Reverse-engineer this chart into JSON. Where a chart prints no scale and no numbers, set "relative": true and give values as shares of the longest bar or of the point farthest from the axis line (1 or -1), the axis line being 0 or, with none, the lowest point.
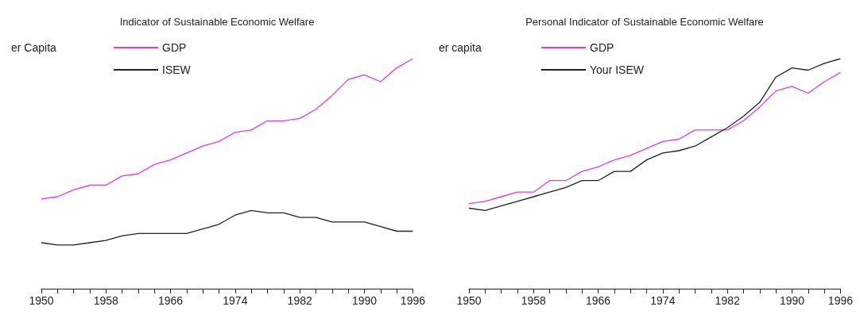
{
  "chart_data": [
    {
      "type": "line",
      "title": "Indicator of Sustainable Economic Welfare",
      "ylabel": "er Capita",
      "relative": true,
      "legend": "top left",
      "grid": false,
      "x": [
        1950,
        1952,
        1954,
        1956,
        1958,
        1960,
        1962,
        1964,
        1966,
        1968,
        1970,
        1972,
        1974,
        1976,
        1978,
        1980,
        1982,
        1984,
        1986,
        1988,
        1990,
        1992,
        1994,
        1996
      ],
      "xlim": [
        1950,
        1996
      ],
      "xticks": [
        1950,
        {
          "value": 1952,
          "label": null
        },
        {
          "value": 1954,
          "label": null
        },
        {
          "value": 1956,
          "label": null
        },
        1958,
        {
          "value": 1960,
          "label": null
        },
        {
          "value": 1962,
          "label": null
        },
        {
          "value": 1964,
          "label": null
        },
        1966,
        {
          "value": 1968,
          "label": null
        },
        {
          "value": 1970,
          "label": null
        },
        {
          "value": 1972,
          "label": null
        },
        1974,
        {
          "value": 1976,
          "label": null
        },
        {
          "value": 1978,
          "label": null
        },
        {
          "value": 1980,
          "label": null
        },
        1982,
        {
          "value": 1984,
          "label": null
        },
        {
          "value": 1986,
          "label": null
        },
        {
          "value": 1988,
          "label": null
        },
        1990,
        {
          "value": 1992,
          "label": null
        },
        {
          "value": 1994,
          "label": null
        },
        1996
      ],
      "series": [
        {
          "name": "GDP",
          "color": "#ee33ee",
          "values": [
            0.39,
            0.4,
            0.43,
            0.45,
            0.45,
            0.49,
            0.5,
            0.54,
            0.56,
            0.59,
            0.62,
            0.64,
            0.68,
            0.69,
            0.73,
            0.73,
            0.74,
            0.78,
            0.84,
            0.91,
            0.93,
            0.9,
            0.96,
            1
          ]
        },
        {
          "name": "ISEW",
          "color": "#222222",
          "values": [
            0.2,
            0.19,
            0.19,
            0.2,
            0.21,
            0.23,
            0.24,
            0.24,
            0.24,
            0.24,
            0.26,
            0.28,
            0.32,
            0.34,
            0.33,
            0.33,
            0.31,
            0.31,
            0.29,
            0.29,
            0.29,
            0.27,
            0.25,
            0.25
          ]
        }
      ]
    },
    {
      "type": "line",
      "title": "Personal Indicator of Sustainable Economic Welfare",
      "ylabel": "er capita",
      "relative": true,
      "legend": "top left",
      "grid": false,
      "x": [
        1950,
        1952,
        1954,
        1956,
        1958,
        1960,
        1962,
        1964,
        1966,
        1968,
        1970,
        1972,
        1974,
        1976,
        1978,
        1980,
        1982,
        1984,
        1986,
        1988,
        1990,
        1992,
        1994,
        1996
      ],
      "xlim": [
        1950,
        1996
      ],
      "xticks": [
        1950,
        {
          "value": 1952,
          "label": null
        },
        {
          "value": 1954,
          "label": null
        },
        {
          "value": 1956,
          "label": null
        },
        1958,
        {
          "value": 1960,
          "label": null
        },
        {
          "value": 1962,
          "label": null
        },
        {
          "value": 1964,
          "label": null
        },
        1966,
        {
          "value": 1968,
          "label": null
        },
        {
          "value": 1970,
          "label": null
        },
        {
          "value": 1972,
          "label": null
        },
        1974,
        {
          "value": 1976,
          "label": null
        },
        {
          "value": 1978,
          "label": null
        },
        {
          "value": 1980,
          "label": null
        },
        1982,
        {
          "value": 1984,
          "label": null
        },
        {
          "value": 1986,
          "label": null
        },
        {
          "value": 1988,
          "label": null
        },
        1990,
        {
          "value": 1992,
          "label": null
        },
        {
          "value": 1994,
          "label": null
        },
        1996
      ],
      "series": [
        {
          "name": "GDP",
          "color": "#ee33ee",
          "values": [
            0.37,
            0.38,
            0.4,
            0.42,
            0.42,
            0.47,
            0.47,
            0.51,
            0.53,
            0.56,
            0.58,
            0.61,
            0.64,
            0.65,
            0.69,
            0.69,
            0.69,
            0.73,
            0.79,
            0.86,
            0.88,
            0.85,
            0.9,
            0.94
          ]
        },
        {
          "name": "Your ISEW",
          "color": "#222222",
          "values": [
            0.35,
            0.34,
            0.36,
            0.38,
            0.4,
            0.42,
            0.44,
            0.47,
            0.47,
            0.51,
            0.51,
            0.56,
            0.59,
            0.6,
            0.62,
            0.66,
            0.7,
            0.75,
            0.81,
            0.92,
            0.96,
            0.95,
            0.98,
            1
          ]
        }
      ]
    }
  ]
}
